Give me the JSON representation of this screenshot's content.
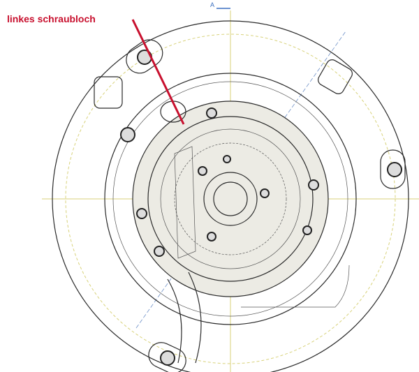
{
  "annotation": {
    "label": "linkes schraubloch"
  },
  "section_marker": "A"
}
